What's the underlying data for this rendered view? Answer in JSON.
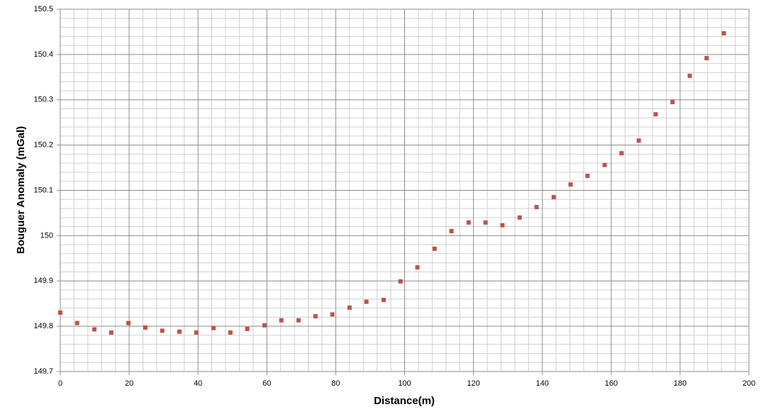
{
  "chart_data": {
    "type": "scatter",
    "x_label": "Distance(m)",
    "y_label": "Bouguer Anomaly (mGal)",
    "series": [
      {
        "color": "#c0504d",
        "x": [
          0,
          4.9,
          9.9,
          14.8,
          19.8,
          24.7,
          29.6,
          34.6,
          39.5,
          44.5,
          49.4,
          54.3,
          59.3,
          64.2,
          69.2,
          74.1,
          79.0,
          84.0,
          88.9,
          93.9,
          98.8,
          103.7,
          108.7,
          113.6,
          118.6,
          123.5,
          128.4,
          133.4,
          138.3,
          143.3,
          148.2,
          153.1,
          158.1,
          163.0,
          168.0,
          172.9,
          177.8,
          182.8,
          187.7,
          192.7
        ],
        "values": [
          149.83,
          149.807,
          149.793,
          149.786,
          149.807,
          149.797,
          149.79,
          149.788,
          149.786,
          149.796,
          149.786,
          149.794,
          149.802,
          149.813,
          149.813,
          149.822,
          149.826,
          149.841,
          149.854,
          149.858,
          149.899,
          149.93,
          149.971,
          150.01,
          150.029,
          150.029,
          150.023,
          150.04,
          150.063,
          150.085,
          150.113,
          150.132,
          150.156,
          150.182,
          150.21,
          150.268,
          150.295,
          150.353,
          150.392,
          150.447
        ]
      }
    ],
    "xlim": [
      0,
      200
    ],
    "xticks": [
      0,
      20,
      40,
      60,
      80,
      100,
      120,
      140,
      160,
      180,
      200
    ],
    "ylim": [
      149.7,
      150.5
    ],
    "yticks": [
      149.7,
      149.8,
      149.9,
      150,
      150.1,
      150.2,
      150.3,
      150.4,
      150.5
    ],
    "grid": true
  }
}
